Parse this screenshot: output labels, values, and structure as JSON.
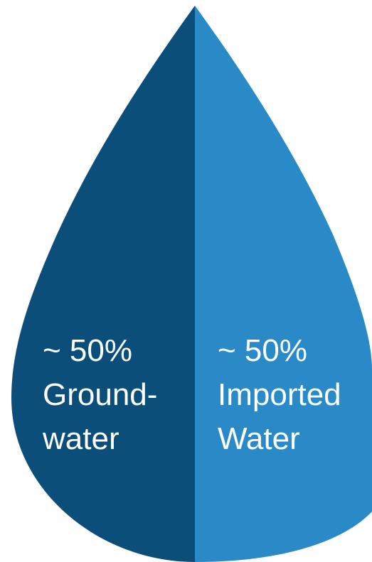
{
  "colors": {
    "background": "#ffffff",
    "groundwater": "#0b4e79",
    "imported_water": "#2a8ac8",
    "text": "#ffffff"
  },
  "drop": {
    "left_half": {
      "percent": 50,
      "percent_label": "~ 50%",
      "line1": "Ground-",
      "line2": "water"
    },
    "right_half": {
      "percent": 50,
      "percent_label": "~ 50%",
      "line1": "Imported",
      "line2": "Water"
    }
  }
}
